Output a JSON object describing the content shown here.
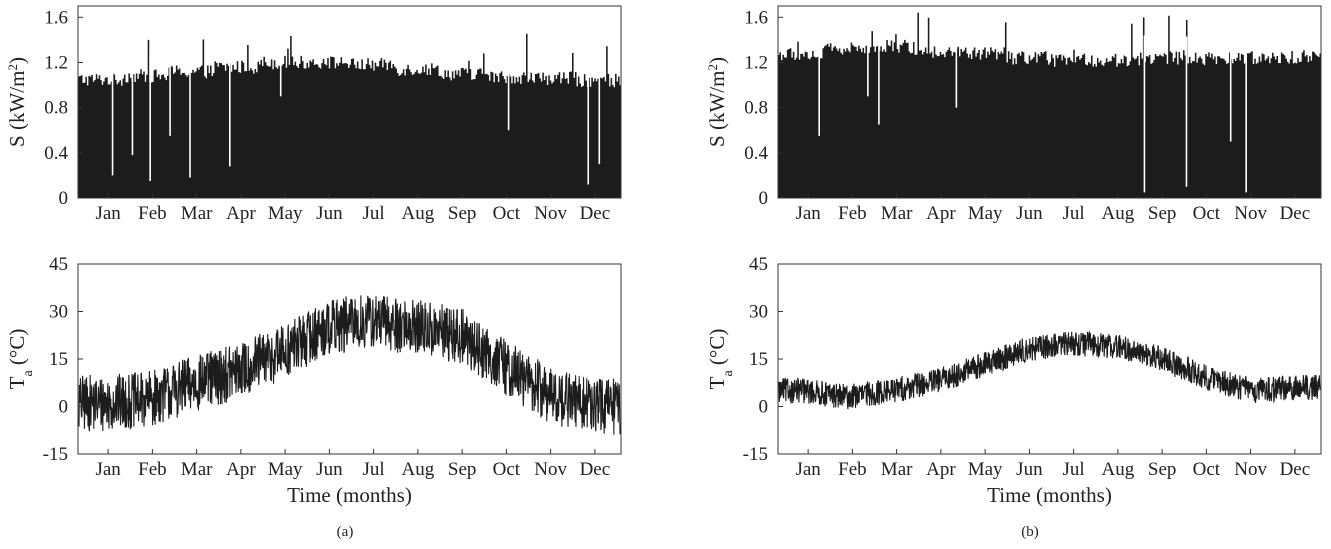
{
  "chart_data": [
    {
      "id": "a-top",
      "type": "bar",
      "ylabel": "S (kW/m²)",
      "ylabel_base": "S (kW/m",
      "ylabel_sup": "2",
      "ylabel_tail": ")",
      "xlabel": "",
      "yticks": [
        "0",
        "0.4",
        "0.8",
        "1.2",
        "1.6"
      ],
      "ylim": [
        0,
        1.7
      ],
      "months": [
        "Jan",
        "Feb",
        "Mar",
        "Apr",
        "May",
        "Jun",
        "Jul",
        "Aug",
        "Sep",
        "Oct",
        "Nov",
        "Dec"
      ],
      "series": [
        {
          "daily_peak_profile": [
            1.05,
            1.08,
            1.12,
            1.16,
            1.2,
            1.2,
            1.18,
            1.14,
            1.1,
            1.07,
            1.06,
            1.04
          ],
          "peak_max": 1.62
        }
      ],
      "dips": [
        {
          "month_pos": 0.6,
          "value": 0.2
        },
        {
          "month_pos": 1.05,
          "value": 0.38
        },
        {
          "month_pos": 1.45,
          "value": 0.15
        },
        {
          "month_pos": 1.9,
          "value": 0.55
        },
        {
          "month_pos": 2.35,
          "value": 0.18
        },
        {
          "month_pos": 3.25,
          "value": 0.28
        },
        {
          "month_pos": 4.4,
          "value": 0.9
        },
        {
          "month_pos": 9.55,
          "value": 0.6
        },
        {
          "month_pos": 11.35,
          "value": 0.12
        },
        {
          "month_pos": 11.6,
          "value": 0.3
        }
      ],
      "grid": false
    },
    {
      "id": "a-bottom",
      "type": "line",
      "ylabel": "Ta (°C)",
      "ylabel_main": "T",
      "ylabel_sub": "a",
      "ylabel_tail": " (°C)",
      "xlabel": "Time (months)",
      "yticks": [
        "-15",
        "0",
        "15",
        "30",
        "45"
      ],
      "ylim": [
        -15,
        45
      ],
      "months": [
        "Jan",
        "Feb",
        "Mar",
        "Apr",
        "May",
        "Jun",
        "Jul",
        "Aug",
        "Sep",
        "Oct",
        "Nov",
        "Dec"
      ],
      "series": [
        {
          "monthly_mean": [
            1,
            2,
            7,
            11,
            17,
            25,
            27,
            25,
            22,
            12,
            3,
            0
          ],
          "fluctuation_amplitude": 9,
          "min": -14,
          "max": 39
        }
      ],
      "grid": false
    },
    {
      "id": "b-top",
      "type": "bar",
      "ylabel": "S (kW/m²)",
      "ylabel_base": "S (kW/m",
      "ylabel_sup": "2",
      "ylabel_tail": ")",
      "xlabel": "",
      "yticks": [
        "0",
        "0.4",
        "0.8",
        "1.2",
        "1.6"
      ],
      "ylim": [
        0,
        1.7
      ],
      "months": [
        "Jan",
        "Feb",
        "Mar",
        "Apr",
        "May",
        "Jun",
        "Jul",
        "Aug",
        "Sep",
        "Oct",
        "Nov",
        "Dec"
      ],
      "series": [
        {
          "daily_peak_profile": [
            1.27,
            1.32,
            1.34,
            1.3,
            1.28,
            1.24,
            1.22,
            1.22,
            1.24,
            1.23,
            1.24,
            1.25
          ],
          "peak_max": 1.64
        }
      ],
      "dips": [
        {
          "month_pos": 0.75,
          "value": 0.55
        },
        {
          "month_pos": 1.85,
          "value": 0.9
        },
        {
          "month_pos": 2.1,
          "value": 0.65
        },
        {
          "month_pos": 3.85,
          "value": 0.8
        },
        {
          "month_pos": 8.1,
          "value": 0.05
        },
        {
          "month_pos": 9.05,
          "value": 0.1
        },
        {
          "month_pos": 10.4,
          "value": 0.05
        },
        {
          "month_pos": 10.05,
          "value": 0.5
        }
      ],
      "grid": false
    },
    {
      "id": "b-bottom",
      "type": "line",
      "ylabel": "Ta (°C)",
      "ylabel_main": "T",
      "ylabel_sub": "a",
      "ylabel_tail": " (°C)",
      "xlabel": "Time (months)",
      "yticks": [
        "-15",
        "0",
        "15",
        "30",
        "45"
      ],
      "ylim": [
        -15,
        45
      ],
      "months": [
        "Jan",
        "Feb",
        "Mar",
        "Apr",
        "May",
        "Jun",
        "Jul",
        "Aug",
        "Sep",
        "Oct",
        "Nov",
        "Dec"
      ],
      "series": [
        {
          "monthly_mean": [
            5,
            3,
            5,
            8,
            13,
            18,
            20,
            19,
            15,
            9,
            5,
            6
          ],
          "fluctuation_amplitude": 4,
          "min": -4,
          "max": 28
        }
      ],
      "grid": false
    }
  ],
  "captions": {
    "a": "(a)",
    "b": "(b)"
  }
}
